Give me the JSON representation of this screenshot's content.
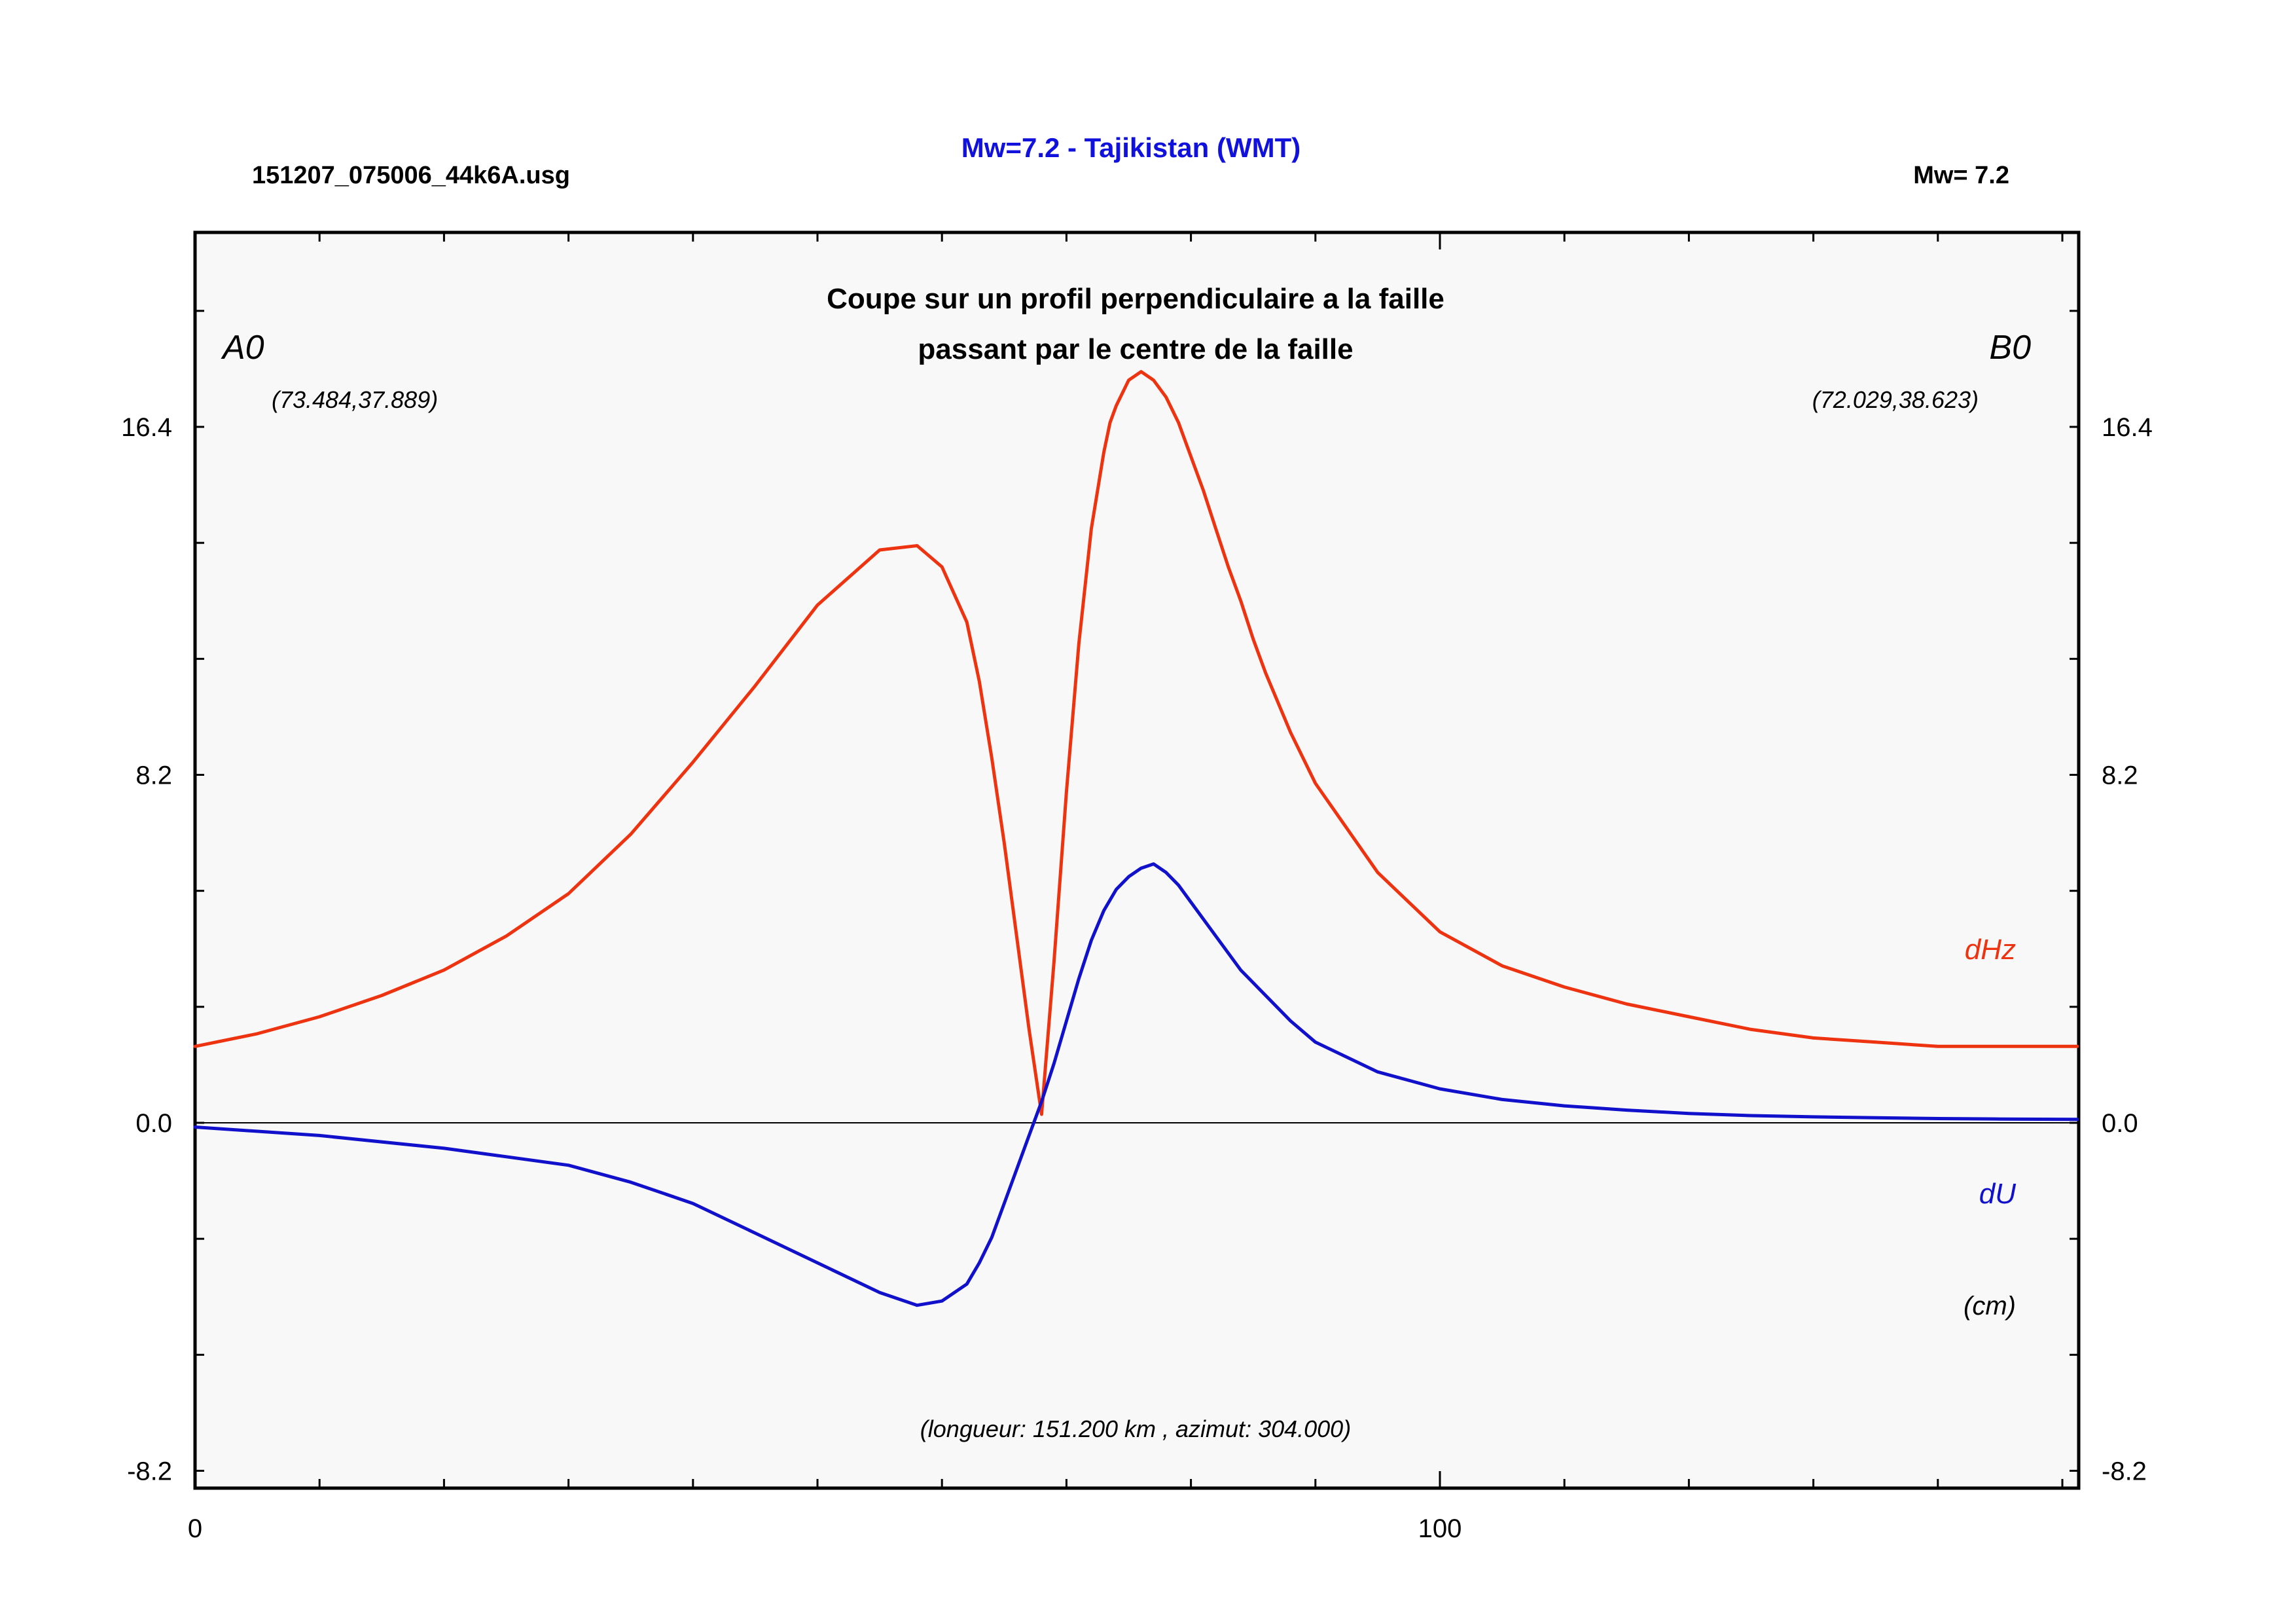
{
  "header": {
    "file_name": "151207_075006_44k6A.usg",
    "title": "Mw=7.2 - Tajikistan (WMT)",
    "magnitude": "Mw= 7.2"
  },
  "chart_data": {
    "type": "line",
    "title": "Coupe sur un profil perpendiculaire a la faille",
    "subtitle": "passant par le centre de la faille",
    "endpoint_a": {
      "label": "A0",
      "coords": "(73.484,37.889)"
    },
    "endpoint_b": {
      "label": "B0",
      "coords": "(72.029,38.623)"
    },
    "units": "(cm)",
    "profile_info": "(longueur: 151.200 km , azimut: 304.000)",
    "xlim": [
      0,
      151.2
    ],
    "ylim": [
      -8.2,
      20.5
    ],
    "x_ticks": [
      {
        "value": 0,
        "label": "0"
      },
      {
        "value": 100,
        "label": "100"
      }
    ],
    "y_ticks": [
      {
        "value": -8.2,
        "label": "-8.2"
      },
      {
        "value": 0,
        "label": "0.0"
      },
      {
        "value": 8.2,
        "label": "8.2"
      },
      {
        "value": 16.4,
        "label": "16.4"
      }
    ],
    "series": [
      {
        "name": "dHz",
        "color": "#ee3311",
        "x": [
          0,
          5,
          10,
          15,
          20,
          25,
          30,
          35,
          40,
          45,
          50,
          55,
          58,
          60,
          62,
          63,
          64,
          65,
          66,
          67,
          68,
          69,
          70,
          71,
          72,
          73,
          73.5,
          74,
          75,
          76,
          77,
          78,
          79,
          80,
          81,
          82,
          83,
          84,
          85,
          86,
          88,
          90,
          95,
          100,
          105,
          110,
          115,
          120,
          125,
          130,
          135,
          140,
          145,
          151.2
        ],
        "values": [
          1.8,
          2.1,
          2.5,
          3.0,
          3.6,
          4.4,
          5.4,
          6.8,
          8.5,
          10.3,
          12.2,
          13.5,
          13.6,
          13.1,
          11.8,
          10.4,
          8.6,
          6.6,
          4.4,
          2.2,
          0.2,
          3.8,
          7.8,
          11.3,
          14.0,
          15.8,
          16.5,
          16.9,
          17.5,
          17.7,
          17.5,
          17.1,
          16.5,
          15.7,
          14.9,
          14.0,
          13.1,
          12.3,
          11.4,
          10.6,
          9.2,
          8.0,
          5.9,
          4.5,
          3.7,
          3.2,
          2.8,
          2.5,
          2.2,
          2.0,
          1.9,
          1.8,
          1.8,
          1.8
        ]
      },
      {
        "name": "dU",
        "color": "#1111cc",
        "x": [
          0,
          10,
          20,
          30,
          35,
          40,
          45,
          50,
          55,
          58,
          60,
          62,
          63,
          64,
          65,
          66,
          67,
          68,
          69,
          70,
          71,
          72,
          73,
          74,
          75,
          76,
          77,
          78,
          79,
          80,
          82,
          84,
          86,
          88,
          90,
          95,
          100,
          105,
          110,
          115,
          120,
          125,
          130,
          135,
          140,
          145,
          151.2
        ],
        "values": [
          -0.1,
          -0.3,
          -0.6,
          -1.0,
          -1.4,
          -1.9,
          -2.6,
          -3.3,
          -4.0,
          -4.3,
          -4.2,
          -3.8,
          -3.3,
          -2.7,
          -1.9,
          -1.1,
          -0.3,
          0.5,
          1.4,
          2.4,
          3.4,
          4.3,
          5.0,
          5.5,
          5.8,
          6.0,
          6.1,
          5.9,
          5.6,
          5.2,
          4.4,
          3.6,
          3.0,
          2.4,
          1.9,
          1.2,
          0.8,
          0.55,
          0.4,
          0.3,
          0.22,
          0.17,
          0.14,
          0.12,
          0.1,
          0.09,
          0.08
        ]
      }
    ]
  }
}
